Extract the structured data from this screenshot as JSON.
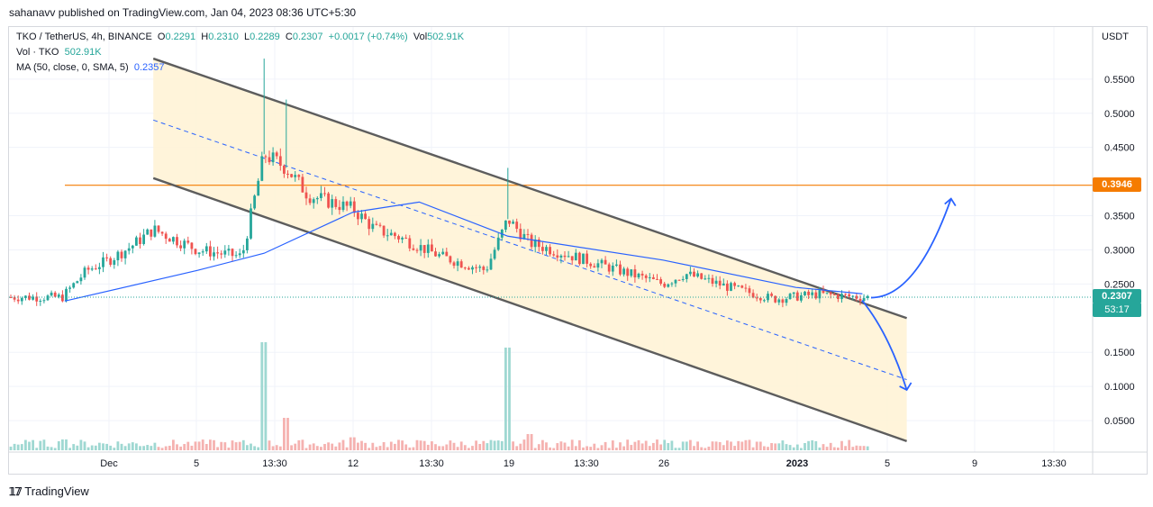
{
  "header": {
    "published_by": "sahanavv published on TradingView.com, Jan 04, 2023 08:36 UTC+5:30"
  },
  "legend": {
    "symbol": "TKO / TetherUS, 4h, BINANCE",
    "open_label": "O",
    "open": "0.2291",
    "high_label": "H",
    "high": "0.2310",
    "low_label": "L",
    "low": "0.2289",
    "close_label": "C",
    "close": "0.2307",
    "change": "+0.0017 (+0.74%)",
    "vol_label": "Vol",
    "vol": "502.91K",
    "vol_line": "Vol · TKO",
    "vol_value": "502.91K",
    "ma_line": "MA (50, close, 0, SMA, 5)",
    "ma_value": "0.2357"
  },
  "price_axis": {
    "currency": "USDT",
    "ticks": [
      "0.5500",
      "0.5000",
      "0.4500",
      "0.3500",
      "0.3000",
      "0.2500",
      "0.1500",
      "0.1000",
      "0.0500"
    ],
    "tick_values": [
      0.55,
      0.5,
      0.45,
      0.35,
      0.3,
      0.25,
      0.15,
      0.1,
      0.05
    ]
  },
  "time_axis": {
    "labels": [
      "Dec",
      "5",
      "13:30",
      "12",
      "13:30",
      "19",
      "13:30",
      "26",
      "2023",
      "5",
      "9",
      "13:30"
    ]
  },
  "labels": {
    "resistance_price": "0.3946",
    "current_price": "0.2307",
    "countdown": "53:17"
  },
  "colors": {
    "up": "#26a69a",
    "down": "#ef5350",
    "ma": "#2962ff",
    "resistance": "#f57c00",
    "channel_fill": "#fff3d6",
    "channel_line": "#5d5d5d",
    "arrow": "#2962ff"
  },
  "footer": {
    "brand": "TradingView"
  },
  "chart_data": {
    "type": "candlestick",
    "symbol": "TKO / TetherUS",
    "interval": "4h",
    "exchange": "BINANCE",
    "y_unit": "USDT",
    "ylim": [
      0,
      0.58
    ],
    "ohlc_last": {
      "open": 0.2291,
      "high": 0.231,
      "low": 0.2289,
      "close": 0.2307
    },
    "ma_last": 0.2357,
    "volume_last": "502.91K",
    "resistance_level": 0.3946,
    "price_path": [
      {
        "t": "Nov 29",
        "p": 0.235
      },
      {
        "t": "Nov 30",
        "p": 0.27
      },
      {
        "t": "Dec 1",
        "p": 0.285
      },
      {
        "t": "Dec 2",
        "p": 0.305
      },
      {
        "t": "Dec 3",
        "p": 0.33
      },
      {
        "t": "Dec 5",
        "p": 0.3
      },
      {
        "t": "Dec 7",
        "p": 0.29
      },
      {
        "t": "Dec 8",
        "p": 0.44
      },
      {
        "t": "Dec 9",
        "p": 0.42
      },
      {
        "t": "Dec 10",
        "p": 0.38
      },
      {
        "t": "Dec 12",
        "p": 0.36
      },
      {
        "t": "Dec 13",
        "p": 0.33
      },
      {
        "t": "Dec 14",
        "p": 0.32
      },
      {
        "t": "Dec 16",
        "p": 0.29
      },
      {
        "t": "Dec 18",
        "p": 0.27
      },
      {
        "t": "Dec 19",
        "p": 0.345
      },
      {
        "t": "Dec 20",
        "p": 0.31
      },
      {
        "t": "Dec 22",
        "p": 0.29
      },
      {
        "t": "Dec 24",
        "p": 0.27
      },
      {
        "t": "Dec 26",
        "p": 0.25
      },
      {
        "t": "Dec 27",
        "p": 0.265
      },
      {
        "t": "Dec 29",
        "p": 0.245
      },
      {
        "t": "Dec 31",
        "p": 0.228
      },
      {
        "t": "Jan 2",
        "p": 0.235
      },
      {
        "t": "Jan 4",
        "p": 0.2307
      }
    ],
    "volume_path": [
      {
        "t": "Nov 29",
        "v": 0.1
      },
      {
        "t": "Dec 5",
        "v": 0.08
      },
      {
        "t": "Dec 8",
        "v": 1.0
      },
      {
        "t": "Dec 9",
        "v": 0.3
      },
      {
        "t": "Dec 12",
        "v": 0.12
      },
      {
        "t": "Dec 19",
        "v": 0.95
      },
      {
        "t": "Dec 20",
        "v": 0.15
      },
      {
        "t": "Dec 27",
        "v": 0.08
      },
      {
        "t": "Jan 4",
        "v": 0.04
      }
    ],
    "ma_path": [
      {
        "t": "Nov 29",
        "p": 0.225
      },
      {
        "t": "Dec 5",
        "p": 0.27
      },
      {
        "t": "Dec 8",
        "p": 0.295
      },
      {
        "t": "Dec 12",
        "p": 0.355
      },
      {
        "t": "Dec 15",
        "p": 0.37
      },
      {
        "t": "Dec 19",
        "p": 0.32
      },
      {
        "t": "Dec 26",
        "p": 0.285
      },
      {
        "t": "Jan 1",
        "p": 0.245
      },
      {
        "t": "Jan 4",
        "p": 0.2357
      }
    ],
    "channel": {
      "upper": [
        {
          "t": "Dec 3",
          "p": 0.58
        },
        {
          "t": "Jan 6",
          "p": 0.2
        }
      ],
      "lower": [
        {
          "t": "Dec 3",
          "p": 0.405
        },
        {
          "t": "Jan 6",
          "p": 0.02
        }
      ],
      "mid": [
        {
          "t": "Dec 3",
          "p": 0.49
        },
        {
          "t": "Jan 6",
          "p": 0.11
        }
      ]
    },
    "projections": [
      {
        "direction": "up",
        "from": {
          "t": "Jan 5",
          "p": 0.23
        },
        "to": {
          "t": "Jan 8",
          "p": 0.375
        }
      },
      {
        "direction": "down",
        "from": {
          "t": "Jan 5",
          "p": 0.23
        },
        "to": {
          "t": "Jan 6",
          "p": 0.095
        }
      }
    ]
  }
}
